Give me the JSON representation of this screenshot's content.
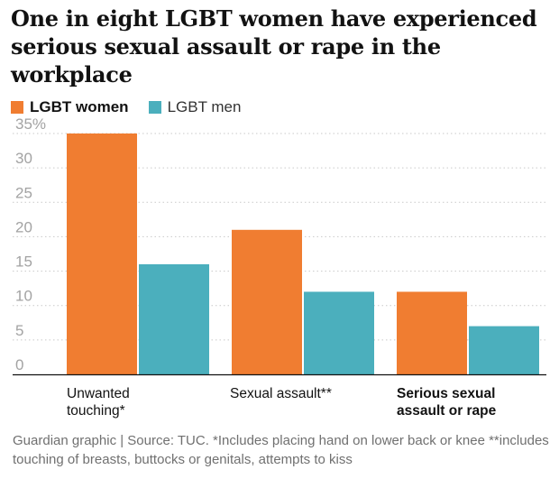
{
  "title": "One in eight LGBT women have experienced serious sexual assault or rape in the workplace",
  "legend": {
    "women_label": "LGBT women",
    "men_label": "LGBT men"
  },
  "colors": {
    "women": "#f07d31",
    "men": "#4bafbd",
    "grid": "#c9c9c9",
    "tick": "#a3a3a3",
    "baseline": "#121212"
  },
  "source": "Guardian graphic | Source: TUC. *Includes placing hand on lower back or knee **includes touching of breasts, buttocks or genitals, attempts to kiss",
  "chart_data": {
    "type": "bar",
    "categories": [
      "Unwanted touching*",
      "Sexual assault**",
      "Serious sexual assault or rape"
    ],
    "category_labels": [
      [
        "Unwanted",
        "touching*"
      ],
      [
        "Sexual assault**"
      ],
      [
        "Serious sexual",
        "assault or rape"
      ]
    ],
    "series": [
      {
        "name": "LGBT women",
        "values": [
          35,
          21,
          12
        ]
      },
      {
        "name": "LGBT men",
        "values": [
          16,
          12,
          7
        ]
      }
    ],
    "yticks": [
      "0",
      "5",
      "10",
      "15",
      "20",
      "25",
      "30",
      "35%"
    ],
    "ylim": [
      0,
      35
    ],
    "grid": true,
    "legend_position": "top-left"
  }
}
